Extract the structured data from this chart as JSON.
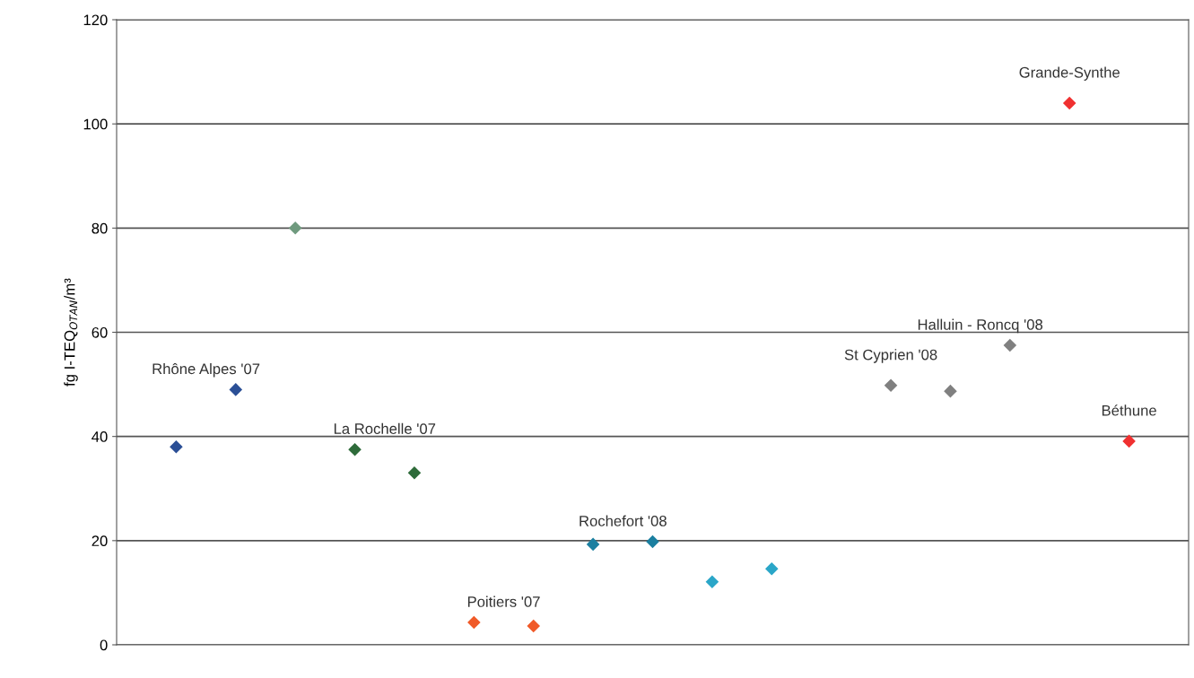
{
  "chart_data": {
    "type": "scatter",
    "ylabel": "fg I-TEQ$_{OTAN}$/m³",
    "categories": [
      null,
      null,
      null,
      null,
      null,
      null,
      null,
      null,
      null,
      null,
      null,
      null,
      null,
      null,
      null,
      null,
      null
    ],
    "ylim": [
      0,
      120
    ],
    "yticks": [
      0,
      20,
      40,
      60,
      80,
      100,
      120
    ],
    "tick_labels": "y",
    "grid": "y",
    "marker": "diamond",
    "series": [
      {
        "name": "Rhône Alpes '07",
        "color": "#2b4f96",
        "values": [
          38,
          49,
          null,
          null,
          null,
          null,
          null,
          null,
          null,
          null,
          null,
          null,
          null,
          null,
          null,
          null,
          null
        ]
      },
      {
        "color": "#6f9a7e",
        "values": [
          null,
          null,
          80,
          null,
          null,
          null,
          null,
          null,
          null,
          null,
          null,
          null,
          null,
          null,
          null,
          null,
          null
        ]
      },
      {
        "name": "La Rochelle '07",
        "color": "#2e6b3a",
        "values": [
          null,
          null,
          null,
          37.5,
          33,
          null,
          null,
          null,
          null,
          null,
          null,
          null,
          null,
          null,
          null,
          null,
          null
        ]
      },
      {
        "name": "Poitiers '07",
        "color": "#f05a28",
        "values": [
          null,
          null,
          null,
          null,
          null,
          4.3,
          3.6,
          null,
          null,
          null,
          null,
          null,
          null,
          null,
          null,
          null,
          null
        ]
      },
      {
        "name": "Rochefort '08",
        "colors": [
          null,
          null,
          null,
          null,
          null,
          null,
          null,
          "#1b7fa0",
          "#1b7fa0",
          "#2aa6c8",
          "#2aa6c8",
          null,
          null,
          null,
          null,
          null,
          null
        ],
        "values": [
          null,
          null,
          null,
          null,
          null,
          null,
          null,
          19.3,
          19.8,
          12.1,
          14.6,
          null,
          null,
          null,
          null,
          null,
          null
        ]
      },
      {
        "name": "St Cyprien '08",
        "color": "#808080",
        "values": [
          null,
          null,
          null,
          null,
          null,
          null,
          null,
          null,
          null,
          null,
          null,
          null,
          49.8,
          null,
          null,
          null,
          null
        ]
      },
      {
        "name": "Halluin - Roncq '08",
        "color": "#808080",
        "values": [
          null,
          null,
          null,
          null,
          null,
          null,
          null,
          null,
          null,
          null,
          null,
          null,
          null,
          48.7,
          57.5,
          null,
          null
        ]
      },
      {
        "name": "Grande-Synthe",
        "color": "#f03030",
        "values": [
          null,
          null,
          null,
          null,
          null,
          null,
          null,
          null,
          null,
          null,
          null,
          null,
          null,
          null,
          null,
          104,
          null
        ]
      },
      {
        "name": "Béthune",
        "color": "#f03030",
        "values": [
          null,
          null,
          null,
          null,
          null,
          null,
          null,
          null,
          null,
          null,
          null,
          null,
          null,
          null,
          null,
          null,
          39.1
        ]
      }
    ]
  }
}
